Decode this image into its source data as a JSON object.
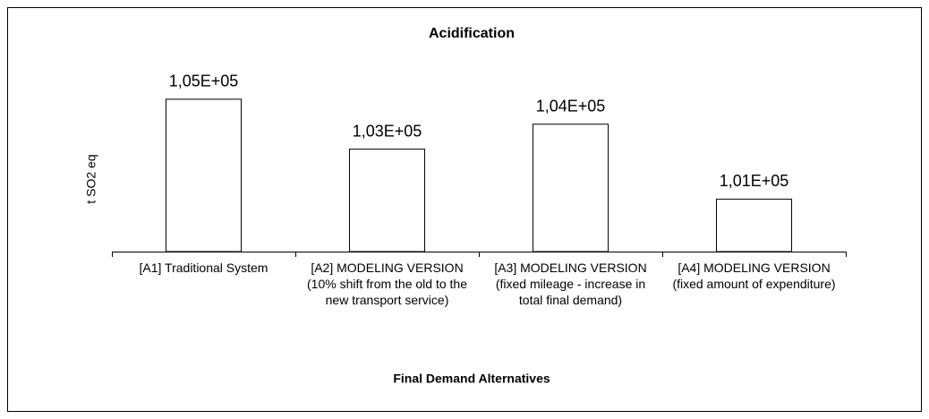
{
  "chart_data": {
    "type": "bar",
    "title": "Acidification",
    "categories": [
      "[A1] Traditional System",
      "[A2] MODELING VERSION (10% shift from the old to the new transport service)",
      "[A3] MODELING VERSION  (fixed mileage - increase in total final demand)",
      "[A4] MODELING VERSION (fixed amount of expenditure)"
    ],
    "values": [
      105000,
      103000,
      104000,
      101000
    ],
    "value_labels": [
      "1,05E+05",
      "1,03E+05",
      "1,04E+05",
      "1,01E+05"
    ],
    "color": "#ffffff",
    "ylim": [
      98900,
      107000
    ],
    "y_label": "t SO2 eq",
    "x_label": "Final Demand Alternatives"
  }
}
